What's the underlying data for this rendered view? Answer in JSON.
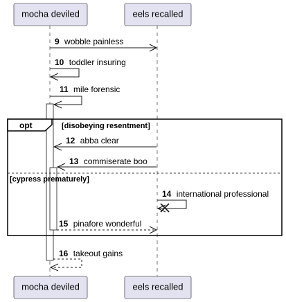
{
  "participants": [
    {
      "id": "p1",
      "name": "mocha deviled"
    },
    {
      "id": "p2",
      "name": "eels recalled"
    }
  ],
  "messages": [
    {
      "num": "9",
      "text": "wobble painless",
      "from": "p1",
      "to": "p2",
      "style": "solid"
    },
    {
      "num": "10",
      "text": "toddler insuring",
      "from": "p1",
      "to": "p1",
      "style": "solid"
    },
    {
      "num": "11",
      "text": "mile forensic",
      "from": "p1",
      "to": "p1",
      "style": "solid"
    },
    {
      "num": "12",
      "text": "abba clear",
      "from": "p2",
      "to": "p1",
      "style": "solid"
    },
    {
      "num": "13",
      "text": "commiserate boo",
      "from": "p2",
      "to": "p1",
      "style": "solid"
    },
    {
      "num": "14",
      "text": "international professional",
      "from": "p2",
      "to": "p2",
      "style": "solid",
      "destroy": true
    },
    {
      "num": "15",
      "text": "pinafore wonderful",
      "from": "p1",
      "to": "p2",
      "style": "dashed"
    },
    {
      "num": "16",
      "text": "takeout gains",
      "from": "p1",
      "to": "p1",
      "style": "dashed"
    }
  ],
  "fragment": {
    "operator": "opt",
    "guard": "[disobeying resentment]",
    "else_guard": "[cypress prematurely]"
  }
}
